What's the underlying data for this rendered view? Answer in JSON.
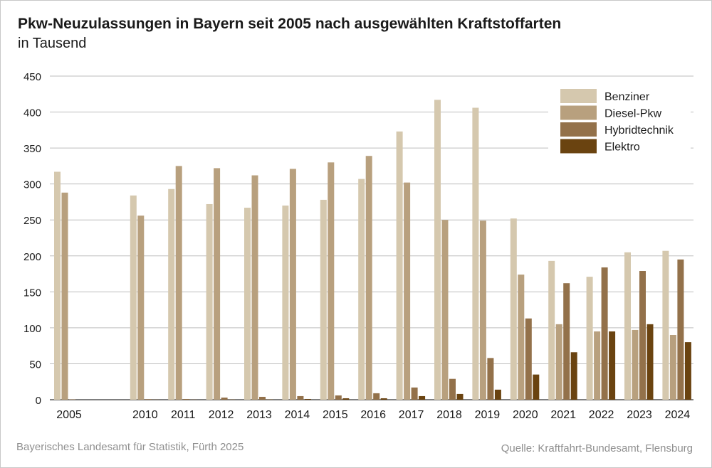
{
  "title": "Pkw-Neuzulassungen in Bayern seit 2005 nach ausgewählten Kraftstoffarten",
  "subtitle": "in Tausend",
  "footer": {
    "left": "Bayerisches Landesamt für Statistik, Fürth 2025",
    "right": "Quelle: Kraftfahrt-Bundesamt, Flensburg"
  },
  "chart_data": {
    "type": "bar",
    "categories": [
      "2005",
      "2010",
      "2011",
      "2012",
      "2013",
      "2014",
      "2015",
      "2016",
      "2017",
      "2018",
      "2019",
      "2020",
      "2021",
      "2022",
      "2023",
      "2024"
    ],
    "yticks": [
      "0",
      "50",
      "100",
      "150",
      "200",
      "250",
      "300",
      "350",
      "400",
      "450"
    ],
    "ylim": [
      0,
      450
    ],
    "grid": true,
    "legend_position": "top-right",
    "series": [
      {
        "name": "Benziner",
        "color": "#d5c8ae",
        "values": [
          317,
          284,
          293,
          272,
          267,
          270,
          278,
          307,
          373,
          417,
          406,
          252,
          193,
          171,
          205,
          207
        ]
      },
      {
        "name": "Diesel-Pkw",
        "color": "#b8a07e",
        "values": [
          288,
          256,
          325,
          322,
          312,
          321,
          330,
          339,
          302,
          250,
          249,
          174,
          105,
          95,
          97,
          90
        ]
      },
      {
        "name": "Hybridtechnik",
        "color": "#93714a",
        "values": [
          0.5,
          0.8,
          1,
          3,
          4,
          5,
          6,
          9,
          17,
          29,
          58,
          113,
          162,
          184,
          179,
          195
        ]
      },
      {
        "name": "Elektro",
        "color": "#6a4310",
        "values": [
          0,
          0.2,
          0.2,
          0.3,
          0.4,
          1,
          2,
          2,
          5,
          8,
          14,
          35,
          66,
          95,
          105,
          80
        ]
      }
    ]
  }
}
